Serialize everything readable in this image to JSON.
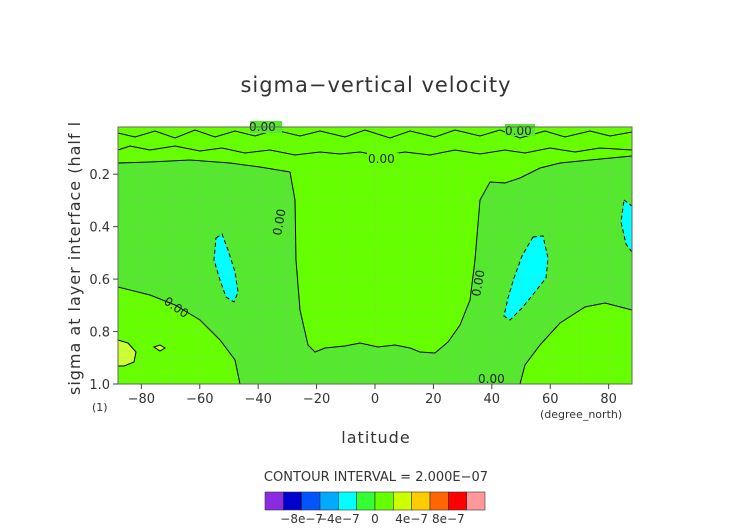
{
  "chart_data": {
    "type": "heatmap",
    "title": "sigma−vertical velocity",
    "xlabel": "latitude",
    "ylabel": "sigma at layer interface (half l",
    "x_unit": "(degree_north)",
    "y_unit": "(1)",
    "xlim": [
      -88,
      88
    ],
    "ylim": [
      1.0,
      0.02
    ],
    "x_ticks": [
      -80,
      -60,
      -40,
      -20,
      0,
      20,
      40,
      60,
      80
    ],
    "x_tick_labels": [
      "−80",
      "−60",
      "−40",
      "−20",
      "0",
      "20",
      "40",
      "60",
      "80"
    ],
    "y_ticks": [
      1.0,
      0.8,
      0.6,
      0.4,
      0.2
    ],
    "y_tick_labels": [
      "1.0",
      "0.8",
      "0.6",
      "0.4",
      "0.2"
    ],
    "contour_interval_text": "CONTOUR INTERVAL = 2.000E−07",
    "contour_label": "0.00",
    "colors": {
      "background": "#55e82e",
      "positive_area": "#66ff00",
      "cyan_area": "#00ffff",
      "yellow_area": "#ccff33",
      "contour_line": "#000000",
      "gray_grid": "#aaaaaa"
    },
    "regions": [
      {
        "name": "upper-left",
        "lat": -40,
        "sigma": 0.3,
        "value": "0 to 2e-7"
      },
      {
        "name": "center",
        "lat": 0,
        "sigma": 0.5,
        "value": "0 to 2e-7"
      },
      {
        "name": "cyan-left",
        "lat": -57,
        "sigma": 0.52,
        "value": "-2e-7 to 0"
      },
      {
        "name": "cyan-right",
        "lat": 52,
        "sigma": 0.56,
        "value": "-2e-7 to 0"
      },
      {
        "name": "yellow-sw",
        "lat": -84,
        "sigma": 0.88,
        "value": "2e-7 to 4e-7"
      }
    ],
    "colorbar": {
      "colors": [
        "#8a2be2",
        "#0000cd",
        "#0055ff",
        "#00aaff",
        "#00ffff",
        "#33ff33",
        "#66ff00",
        "#ccff00",
        "#ffcc00",
        "#ff6600",
        "#ff0000",
        "#ff9999"
      ],
      "tick_labels": [
        "−8e−7",
        "−4e−7",
        "0",
        "4e−7",
        "8e−7"
      ]
    }
  }
}
